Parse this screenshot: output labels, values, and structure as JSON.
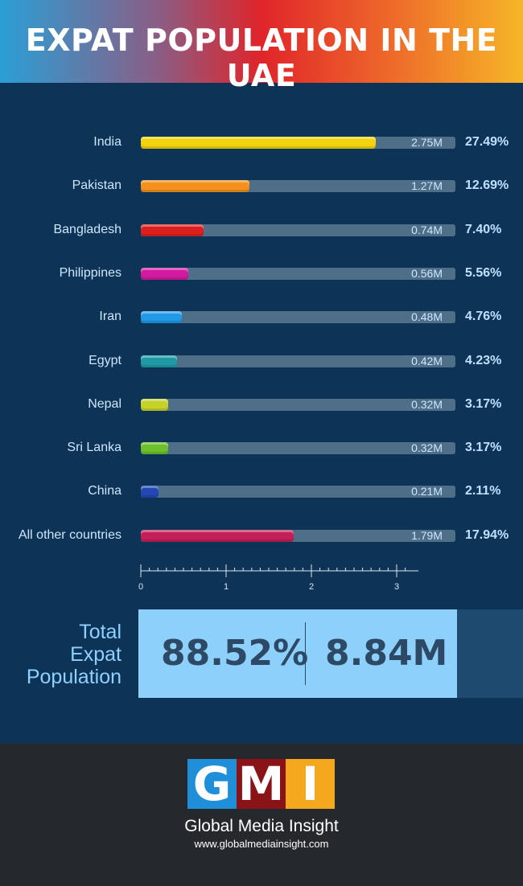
{
  "title": "EXPAT POPULATION IN THE UAE",
  "colors": {
    "background": "#0d3457",
    "track": "#4f6f89",
    "total_box": "#8ed0fc",
    "footer": "#25292e"
  },
  "chart_data": {
    "type": "bar",
    "orientation": "horizontal",
    "xlim": [
      0,
      3.7
    ],
    "x_ticks": [
      "0",
      "1",
      "2",
      "3"
    ],
    "categories": [
      "India",
      "Pakistan",
      "Bangladesh",
      "Philippines",
      "Iran",
      "Egypt",
      "Nepal",
      "Sri Lanka",
      "China",
      "All other countries"
    ],
    "values": [
      2.75,
      1.27,
      0.74,
      0.56,
      0.48,
      0.42,
      0.32,
      0.32,
      0.21,
      1.79
    ],
    "value_labels": [
      "2.75M",
      "1.27M",
      "0.74M",
      "0.56M",
      "0.48M",
      "0.42M",
      "0.32M",
      "0.32M",
      "0.21M",
      "1.79M"
    ],
    "percent_labels": [
      "27.49%",
      "12.69%",
      "7.40%",
      "5.56%",
      "4.76%",
      "4.23%",
      "3.17%",
      "3.17%",
      "2.11%",
      "17.94%"
    ],
    "bar_colors": [
      "#f4d20c",
      "#f4901e",
      "#dc1f1f",
      "#d21aa0",
      "#2299e6",
      "#1e9aa4",
      "#c5d22a",
      "#6cc02c",
      "#2348b4",
      "#c41f58"
    ]
  },
  "total": {
    "label_lines": [
      "Total",
      "Expat",
      "Population"
    ],
    "percent": "88.52%",
    "number": "8.84M"
  },
  "footer": {
    "logo_letters": [
      "G",
      "M",
      "I"
    ],
    "logo_colors": [
      "#1e8fd8",
      "#8a1318",
      "#f4a81e"
    ],
    "brand": "Global Media Insight",
    "website": "www.globalmediainsight.com"
  }
}
